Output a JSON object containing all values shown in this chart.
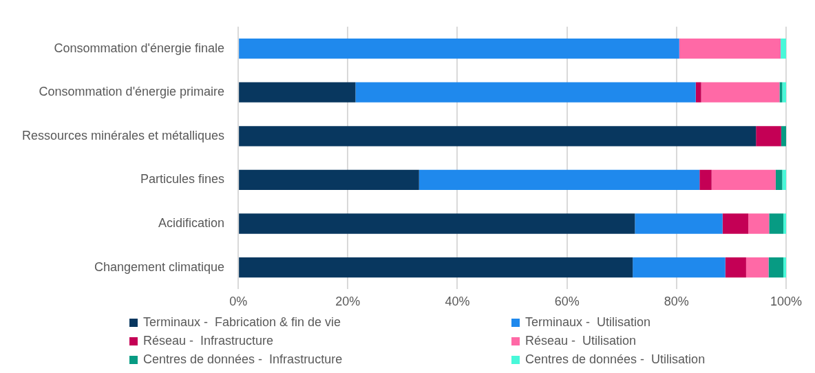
{
  "chart_data": {
    "type": "bar",
    "orientation": "horizontal",
    "stacked": true,
    "categories": [
      "Consommation d'énergie finale",
      "Consommation d'énergie primaire",
      "Ressources minérales et métalliques",
      "Particules fines",
      "Acidification",
      "Changement climatique"
    ],
    "series": [
      {
        "name": "Terminaux -  Fabrication & fin de vie",
        "color": "#08375f",
        "values": [
          0,
          21.4,
          94.5,
          33.0,
          72.4,
          72.0
        ]
      },
      {
        "name": "Terminaux -  Utilisation",
        "color": "#1f89ed",
        "values": [
          80.5,
          62.1,
          0,
          51.2,
          16.0,
          16.9
        ]
      },
      {
        "name": "Réseau -  Infrastructure",
        "color": "#c40055",
        "values": [
          0,
          1.0,
          4.6,
          2.2,
          4.7,
          3.8
        ]
      },
      {
        "name": "Réseau -  Utilisation",
        "color": "#ff69a6",
        "values": [
          18.5,
          14.3,
          0,
          11.7,
          3.8,
          4.1
        ]
      },
      {
        "name": "Centres de données -  Infrastructure",
        "color": "#079b83",
        "values": [
          0,
          0.5,
          0.9,
          1.2,
          2.6,
          2.7
        ]
      },
      {
        "name": "Centres de données -  Utilisation",
        "color": "#48f8d9",
        "values": [
          1.0,
          0.7,
          0,
          0.7,
          0.5,
          0.5
        ]
      }
    ],
    "xlim": [
      0,
      100
    ],
    "xticks": [
      {
        "value": 0,
        "label": "0%"
      },
      {
        "value": 20,
        "label": "20%"
      },
      {
        "value": 40,
        "label": "40%"
      },
      {
        "value": 60,
        "label": "60%"
      },
      {
        "value": 80,
        "label": "80%"
      },
      {
        "value": 100,
        "label": "100%"
      }
    ],
    "grid": "x",
    "legend": "bottom"
  }
}
